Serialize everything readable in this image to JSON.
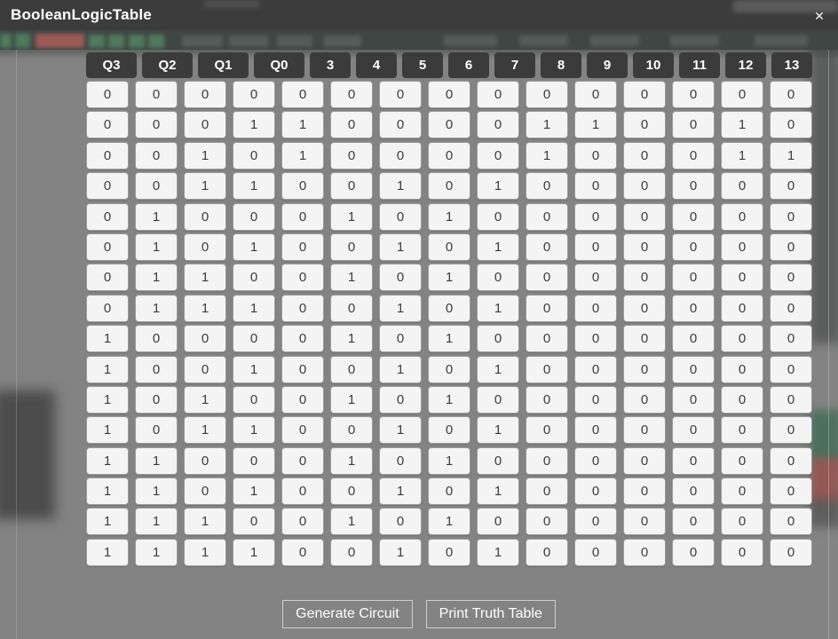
{
  "window": {
    "title": "BooleanLogicTable",
    "close_label": "✕"
  },
  "table": {
    "headers": [
      "Q3",
      "Q2",
      "Q1",
      "Q0",
      "3",
      "4",
      "5",
      "6",
      "7",
      "8",
      "9",
      "10",
      "11",
      "12",
      "13"
    ],
    "input_column_count": 4,
    "rows": [
      [
        "0",
        "0",
        "0",
        "0",
        "0",
        "0",
        "0",
        "0",
        "0",
        "0",
        "0",
        "0",
        "0",
        "0",
        "0"
      ],
      [
        "0",
        "0",
        "0",
        "1",
        "1",
        "0",
        "0",
        "0",
        "0",
        "1",
        "1",
        "0",
        "0",
        "1",
        "0"
      ],
      [
        "0",
        "0",
        "1",
        "0",
        "1",
        "0",
        "0",
        "0",
        "0",
        "1",
        "0",
        "0",
        "0",
        "1",
        "1"
      ],
      [
        "0",
        "0",
        "1",
        "1",
        "0",
        "0",
        "1",
        "0",
        "1",
        "0",
        "0",
        "0",
        "0",
        "0",
        "0"
      ],
      [
        "0",
        "1",
        "0",
        "0",
        "0",
        "1",
        "0",
        "1",
        "0",
        "0",
        "0",
        "0",
        "0",
        "0",
        "0"
      ],
      [
        "0",
        "1",
        "0",
        "1",
        "0",
        "0",
        "1",
        "0",
        "1",
        "0",
        "0",
        "0",
        "0",
        "0",
        "0"
      ],
      [
        "0",
        "1",
        "1",
        "0",
        "0",
        "1",
        "0",
        "1",
        "0",
        "0",
        "0",
        "0",
        "0",
        "0",
        "0"
      ],
      [
        "0",
        "1",
        "1",
        "1",
        "0",
        "0",
        "1",
        "0",
        "1",
        "0",
        "0",
        "0",
        "0",
        "0",
        "0"
      ],
      [
        "1",
        "0",
        "0",
        "0",
        "0",
        "1",
        "0",
        "1",
        "0",
        "0",
        "0",
        "0",
        "0",
        "0",
        "0"
      ],
      [
        "1",
        "0",
        "0",
        "1",
        "0",
        "0",
        "1",
        "0",
        "1",
        "0",
        "0",
        "0",
        "0",
        "0",
        "0"
      ],
      [
        "1",
        "0",
        "1",
        "0",
        "0",
        "1",
        "0",
        "1",
        "0",
        "0",
        "0",
        "0",
        "0",
        "0",
        "0"
      ],
      [
        "1",
        "0",
        "1",
        "1",
        "0",
        "0",
        "1",
        "0",
        "1",
        "0",
        "0",
        "0",
        "0",
        "0",
        "0"
      ],
      [
        "1",
        "1",
        "0",
        "0",
        "0",
        "1",
        "0",
        "1",
        "0",
        "0",
        "0",
        "0",
        "0",
        "0",
        "0"
      ],
      [
        "1",
        "1",
        "0",
        "1",
        "0",
        "0",
        "1",
        "0",
        "1",
        "0",
        "0",
        "0",
        "0",
        "0",
        "0"
      ],
      [
        "1",
        "1",
        "1",
        "0",
        "0",
        "1",
        "0",
        "1",
        "0",
        "0",
        "0",
        "0",
        "0",
        "0",
        "0"
      ],
      [
        "1",
        "1",
        "1",
        "1",
        "0",
        "0",
        "1",
        "0",
        "1",
        "0",
        "0",
        "0",
        "0",
        "0",
        "0"
      ]
    ]
  },
  "buttons": {
    "generate_label": "Generate Circuit",
    "print_label": "Print Truth Table"
  },
  "colors": {
    "titlebar_bg": "#3c3c3c",
    "modal_bg": "#838383",
    "header_cell_bg": "#3b3b3b",
    "data_cell_bg": "#f4f4f4",
    "button_border": "#cfcfcf",
    "bg_green_blob": "#406c52",
    "bg_red_blob": "#984e48"
  }
}
